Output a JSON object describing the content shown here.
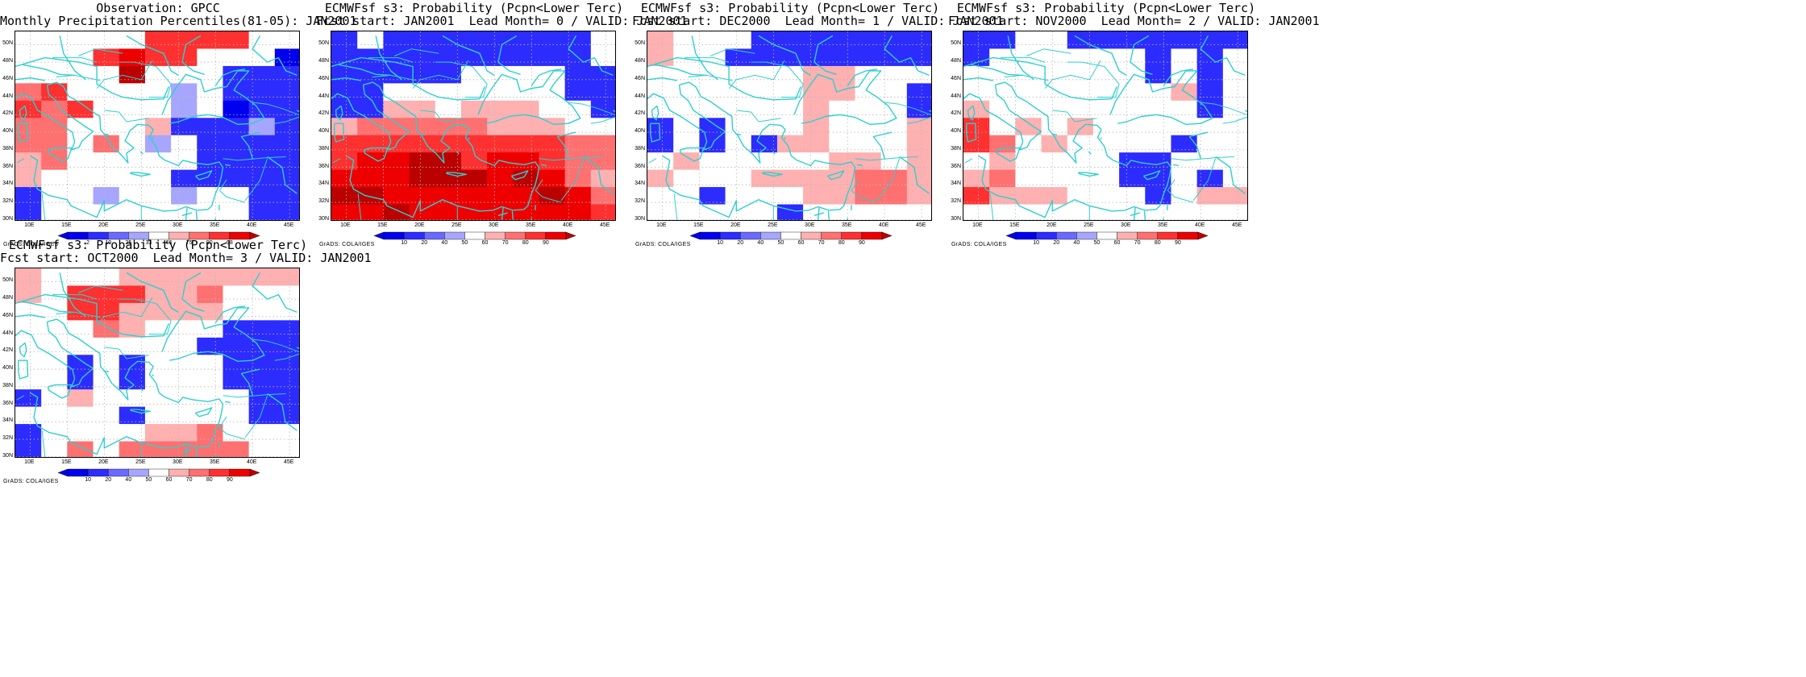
{
  "colors": {
    "coast": "#2fcfcf",
    "grid": "#b8b8b8",
    "scale": [
      "#0000ee",
      "#2c2cff",
      "#6a6aff",
      "#a6a6ff",
      "#ffffff",
      "#ffb0b0",
      "#ff7070",
      "#ff3030",
      "#ee0000",
      "#bb0000"
    ]
  },
  "axes": {
    "y_labels": [
      "50N",
      "48N",
      "46N",
      "44N",
      "42N",
      "40N",
      "38N",
      "36N",
      "34N",
      "32N",
      "30N"
    ],
    "x_labels": [
      "10E",
      "15E",
      "20E",
      "25E",
      "30E",
      "35E",
      "40E",
      "45E"
    ],
    "credit": "GrADS: COLA/IGES"
  },
  "panels": [
    {
      "id": "obs",
      "title_line1": "Observation: GPCC",
      "title_line2": "Monthly Precipitation Percentiles(81-05): JAN2001",
      "colorbar_labels": [
        "2",
        "10",
        "25",
        "33",
        "66",
        "75",
        "90",
        "98"
      ],
      "grid": [
        "44444777744",
        "44478774440",
        "44449444111",
        "67444434111",
        "76744434011",
        "66444511131",
        "66464341111",
        "56444441111",
        "54444411111",
        "14434434411",
        "14444444411"
      ]
    },
    {
      "id": "lead0",
      "title_line1": "ECMWFsf s3: Probability (Pcpn<Lower Terc)",
      "title_line2": "Fcst start: JAN2001  Lead Month= 0 / VALID: JAN2001",
      "colorbar_labels": [
        "10",
        "20",
        "40",
        "50",
        "60",
        "70",
        "80",
        "90"
      ],
      "grid": [
        "14111111114",
        "11111111114",
        "11111444411",
        "11444444411",
        "11554555441",
        "56666655544",
        "77777777766",
        "78899788766",
        "88899989865",
        "99888888986",
        "88988888887"
      ]
    },
    {
      "id": "lead1",
      "title_line1": "ECMWFsf s3: Probability (Pcpn<Lower Terc)",
      "title_line2": "Fcst start: DEC2000  Lead Month= 1 / VALID: JAN2001",
      "colorbar_labels": [
        "10",
        "20",
        "40",
        "50",
        "60",
        "70",
        "80",
        "90"
      ],
      "grid": [
        "54441111111",
        "54411111111",
        "44444455444",
        "44444455441",
        "44444454441",
        "14144454445",
        "14141554445",
        "45444445545",
        "54445555665",
        "44144455665",
        "44444144444"
      ]
    },
    {
      "id": "lead2",
      "title_line1": "ECMWFsf s3: Probability (Pcpn<Lower Terc)",
      "title_line2": "Fcst start: NOV2000  Lead Month= 2 / VALID: JAN2001",
      "colorbar_labels": [
        "10",
        "20",
        "40",
        "50",
        "60",
        "70",
        "80",
        "90"
      ],
      "grid": [
        "11441111111",
        "14444441414",
        "44444441414",
        "44444444514",
        "54444444414",
        "74545444444",
        "76454444144",
        "45444411444",
        "56444411414",
        "75554441455",
        "44444444444"
      ]
    },
    {
      "id": "lead3",
      "title_line1": "ECMWFsf s3: Probability (Pcpn<Lower Terc)",
      "title_line2": "Fcst start: OCT2000  Lead Month= 3 / VALID: JAN2001",
      "colorbar_labels": [
        "10",
        "20",
        "40",
        "50",
        "60",
        "70",
        "80",
        "90"
      ],
      "grid": [
        "54445555555",
        "54777556444",
        "44775555444",
        "44465444111",
        "44444441111",
        "44141444111",
        "44141444111",
        "14544444411",
        "44441444411",
        "14444556444",
        "14646666644"
      ]
    }
  ]
}
